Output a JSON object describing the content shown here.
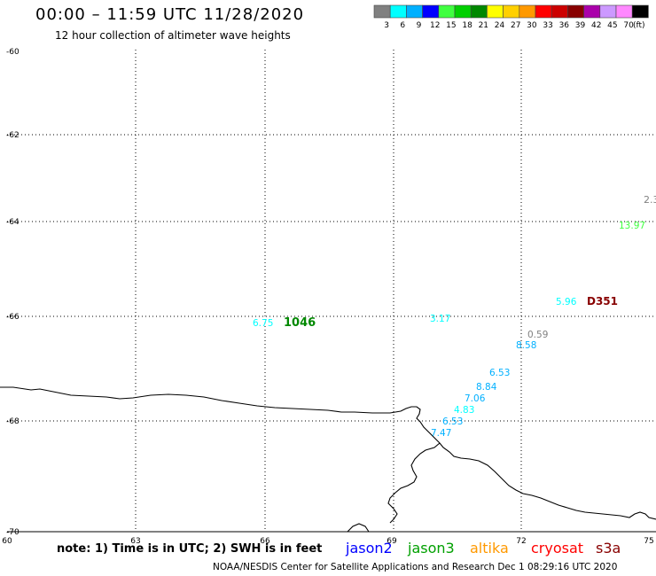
{
  "header": {
    "title": "00:00 – 11:59 UTC 11/28/2020",
    "subtitle": "12 hour collection of altimeter wave heights"
  },
  "legend": {
    "unit": "(ft)",
    "items": [
      {
        "label": "3",
        "color": "#808080"
      },
      {
        "label": "6",
        "color": "#00ffff"
      },
      {
        "label": "9",
        "color": "#00b0ff"
      },
      {
        "label": "12",
        "color": "#0000ff"
      },
      {
        "label": "15",
        "color": "#40ff40"
      },
      {
        "label": "18",
        "color": "#00d000"
      },
      {
        "label": "21",
        "color": "#008800"
      },
      {
        "label": "24",
        "color": "#ffff00"
      },
      {
        "label": "27",
        "color": "#ffd000"
      },
      {
        "label": "30",
        "color": "#ff9900"
      },
      {
        "label": "33",
        "color": "#ff0000"
      },
      {
        "label": "36",
        "color": "#cc0000"
      },
      {
        "label": "39",
        "color": "#880000"
      },
      {
        "label": "42",
        "color": "#aa00aa"
      },
      {
        "label": "45",
        "color": "#cc99ff"
      },
      {
        "label": "70",
        "color": "#ff88ff"
      },
      {
        "label": "",
        "color": "#000000"
      }
    ]
  },
  "map": {
    "lat_labels": [
      "-60",
      "-62",
      "-64",
      "-66",
      "-68",
      "-70"
    ],
    "lon_labels": [
      "60",
      "63",
      "66",
      "69",
      "72",
      "75"
    ],
    "observations": [
      {
        "text": "2.3",
        "color": "#808080"
      },
      {
        "text": "13.97",
        "color": "#40ff40"
      },
      {
        "text": "5.96",
        "color": "#00ffff"
      },
      {
        "text": "D351",
        "color": "#880000"
      },
      {
        "text": "6.75",
        "color": "#00ffff"
      },
      {
        "text": "1046",
        "color": "#008800"
      },
      {
        "text": "3.17",
        "color": "#00ffff"
      },
      {
        "text": "0.59",
        "color": "#808080"
      },
      {
        "text": "8.58",
        "color": "#00b0ff"
      },
      {
        "text": "6.53",
        "color": "#00b0ff"
      },
      {
        "text": "8.84",
        "color": "#00b0ff"
      },
      {
        "text": "7.06",
        "color": "#00b0ff"
      },
      {
        "text": "4.83",
        "color": "#00ffff"
      },
      {
        "text": "6.53",
        "color": "#00b0ff"
      },
      {
        "text": "7.47",
        "color": "#00b0ff"
      }
    ]
  },
  "footer": {
    "note": "note: 1) Time is in UTC; 2) SWH is in feet",
    "satellites": [
      {
        "name": "jason2",
        "color": "#0000ff"
      },
      {
        "name": "jason3",
        "color": "#00a000"
      },
      {
        "name": "altika",
        "color": "#ff9900"
      },
      {
        "name": "cryosat",
        "color": "#ff0000"
      },
      {
        "name": "s3a",
        "color": "#880000"
      }
    ],
    "credit": "NOAA/NESDIS Center for Satellite Applications and Research    Dec  1 08:29:16 UTC 2020"
  }
}
